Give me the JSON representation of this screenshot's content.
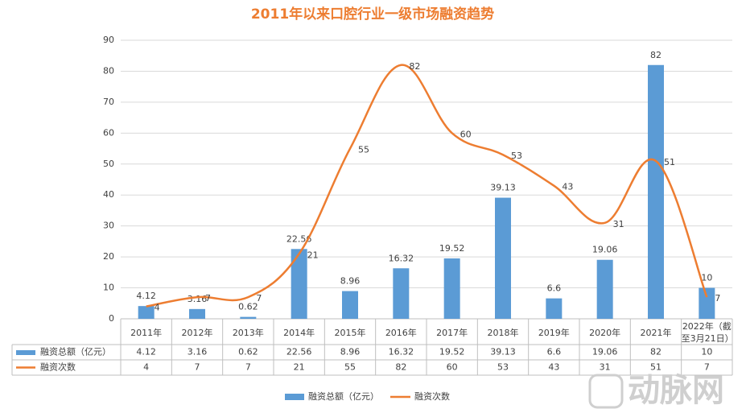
{
  "chart_data": {
    "type": "bar-line-table",
    "title": "2011年以来口腔行业一级市场融资趋势",
    "categories": [
      "2011年",
      "2012年",
      "2013年",
      "2014年",
      "2015年",
      "2016年",
      "2017年",
      "2018年",
      "2019年",
      "2020年",
      "2021年",
      "2022年（截至3月21日）"
    ],
    "series": [
      {
        "name": "融资总额（亿元）",
        "type": "bar",
        "color": "#5b9bd5",
        "values": [
          4.12,
          3.16,
          0.62,
          22.56,
          8.96,
          16.32,
          19.52,
          39.13,
          6.6,
          19.06,
          82,
          10
        ]
      },
      {
        "name": "融资次数",
        "type": "line",
        "color": "#ed7d31",
        "values": [
          4,
          7,
          7,
          21,
          55,
          82,
          60,
          53,
          43,
          31,
          51,
          7
        ]
      }
    ],
    "ylim": [
      0,
      90
    ],
    "yticks": [
      0,
      10,
      20,
      30,
      40,
      50,
      60,
      70,
      80,
      90
    ],
    "grid": true,
    "legend": "bottom",
    "watermark": "动脉网"
  }
}
